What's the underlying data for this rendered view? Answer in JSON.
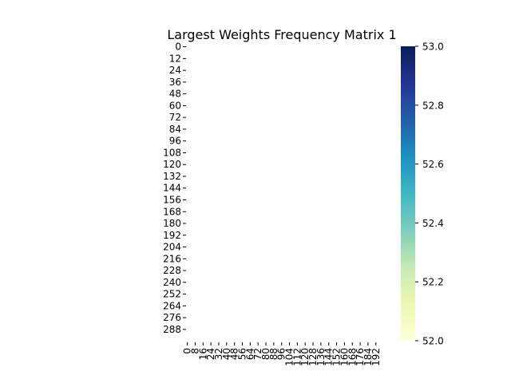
{
  "chart_data": {
    "type": "heatmap",
    "title": "Largest Weights Frequency Matrix 1",
    "xlabel": "",
    "ylabel": "",
    "rows": 300,
    "cols": 200,
    "y_tick_labels": [
      "0",
      "12",
      "24",
      "36",
      "48",
      "60",
      "72",
      "84",
      "96",
      "108",
      "120",
      "132",
      "144",
      "156",
      "168",
      "180",
      "192",
      "204",
      "216",
      "228",
      "240",
      "252",
      "264",
      "276",
      "288"
    ],
    "x_tick_labels": [
      "0",
      "8",
      "16",
      "24",
      "32",
      "40",
      "48",
      "56",
      "64",
      "72",
      "80",
      "88",
      "96",
      "104",
      "112",
      "120",
      "128",
      "136",
      "144",
      "152",
      "160",
      "168",
      "176",
      "184",
      "192"
    ],
    "colorbar": {
      "min": 52.0,
      "max": 53.0,
      "tick_labels": [
        "52.0",
        "52.2",
        "52.4",
        "52.6",
        "52.8",
        "53.0"
      ],
      "colormap": "YlGnBu",
      "stops": [
        "#ffffd9",
        "#edf8b1",
        "#c7e9b4",
        "#7fcdbb",
        "#41b6c4",
        "#1d91c0",
        "#225ea8",
        "#253494",
        "#081d58"
      ]
    },
    "cell_fill": "#ffffff",
    "grid": false
  }
}
